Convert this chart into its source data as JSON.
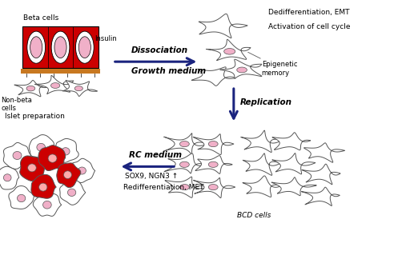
{
  "bg_color": "#ffffff",
  "cell_red": "#cc0000",
  "cell_pink": "#f0b0c8",
  "cell_pink2": "#e8a0bc",
  "cell_outline": "#555555",
  "arrow_color": "#1a237e",
  "orange_bar": "#c87820",
  "label_dissociation": "Dissociation",
  "label_growth": "Growth medium",
  "label_replication": "Replication",
  "label_rc": "RC medium",
  "label_sox": "SOX9, NGN3 ↑",
  "label_rediff": "Redifferentiation, MET",
  "label_dediff": "Dedifferentiation, EMT",
  "label_activation": "Activation of cell cycle",
  "label_epigenetic": "Epigenetic\nmemory",
  "label_beta": "Beta cells",
  "label_insulin": "Insulin",
  "label_nonbeta": "Non-beta\ncells",
  "label_islet": "Islet preparation",
  "label_bcd": "BCD cells"
}
